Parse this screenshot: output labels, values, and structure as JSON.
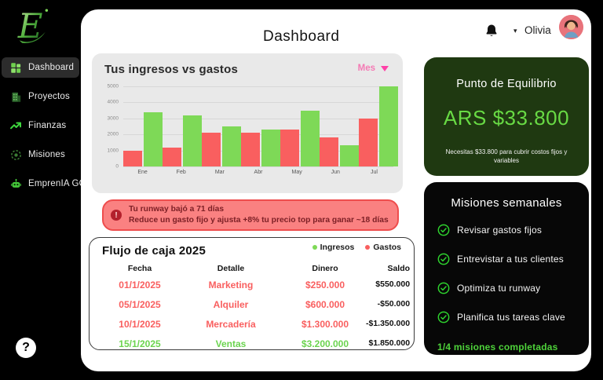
{
  "sidebar": {
    "logo_letter": "E",
    "items": [
      {
        "label": "Dashboard",
        "active": true
      },
      {
        "label": "Proyectos",
        "active": false
      },
      {
        "label": "Finanzas",
        "active": false
      },
      {
        "label": "Misiones",
        "active": false
      },
      {
        "label": "EmprenIA GO",
        "active": false
      }
    ],
    "help_label": "?"
  },
  "header": {
    "title": "Dashboard",
    "user_name": "Olivia"
  },
  "chart_card": {
    "title": "Tus ingresos vs gastos",
    "period_selector": "Mes"
  },
  "chart_data": {
    "type": "bar",
    "title": "Tus ingresos vs gastos",
    "categories": [
      "Ene",
      "Feb",
      "Mar",
      "Abr",
      "May",
      "Jun",
      "Jul"
    ],
    "series": [
      {
        "name": "Gastos",
        "color": "#f95f5f",
        "values": [
          1000,
          1200,
          2100,
          2100,
          2300,
          1800,
          3000
        ]
      },
      {
        "name": "Ingresos",
        "color": "#7ed957",
        "values": [
          3400,
          3200,
          2500,
          2300,
          3500,
          1300,
          5000
        ]
      }
    ],
    "ylim": [
      0,
      5000
    ],
    "yticks": [
      0,
      1000,
      2000,
      3000,
      4000,
      5000
    ],
    "grid": true,
    "legend_position": "top-right-of-cashflow-card"
  },
  "alert": {
    "line1": "Tu runway bajó a 71 días",
    "line2": "Reduce un gasto fijo y ajusta +8% tu precio top para ganar ~18 días",
    "icon": "alert-exclamation",
    "exclamation": "!"
  },
  "cashflow": {
    "title": "Flujo de caja 2025",
    "legend": [
      {
        "label": "Ingresos",
        "color": "#7ed957"
      },
      {
        "label": "Gastos",
        "color": "#f95f5f"
      }
    ],
    "columns": [
      "Fecha",
      "Detalle",
      "Dinero",
      "Saldo"
    ],
    "rows": [
      {
        "fecha": "01/1/2025",
        "detalle": "Marketing",
        "dinero": "$250.000",
        "saldo": "$550.000",
        "type": "gasto"
      },
      {
        "fecha": "05/1/2025",
        "detalle": "Alquiler",
        "dinero": "$600.000",
        "saldo": "-$50.000",
        "type": "gasto"
      },
      {
        "fecha": "10/1/2025",
        "detalle": "Mercadería",
        "dinero": "$1.300.000",
        "saldo": "-$1.350.000",
        "type": "gasto"
      },
      {
        "fecha": "15/1/2025",
        "detalle": "Ventas",
        "dinero": "$3.200.000",
        "saldo": "$1.850.000",
        "type": "ingreso"
      }
    ]
  },
  "equilibrium": {
    "title": "Punto de Equilibrio",
    "amount": "ARS $33.800",
    "subtitle": "Necesitas $33.800 para cubrir costos fijos y variables"
  },
  "missions": {
    "title": "Misiones semanales",
    "items": [
      "Revisar gastos fijos",
      "Entrevistar a tus clientes",
      "Optimiza tu runway",
      "Planifica tus tareas clave"
    ],
    "footer": "1/4 misiones completadas"
  },
  "colors": {
    "ingresos_green": "#7ed957",
    "gastos_red": "#f95f5f",
    "accent_pink": "#ff41a8",
    "equilibrium_card_bg": "#1f3911",
    "equilibrium_amount_green": "#68da44",
    "missions_check_green": "#2ed32e",
    "alert_bg": "#fa8181",
    "alert_border": "#ee4d4d"
  }
}
